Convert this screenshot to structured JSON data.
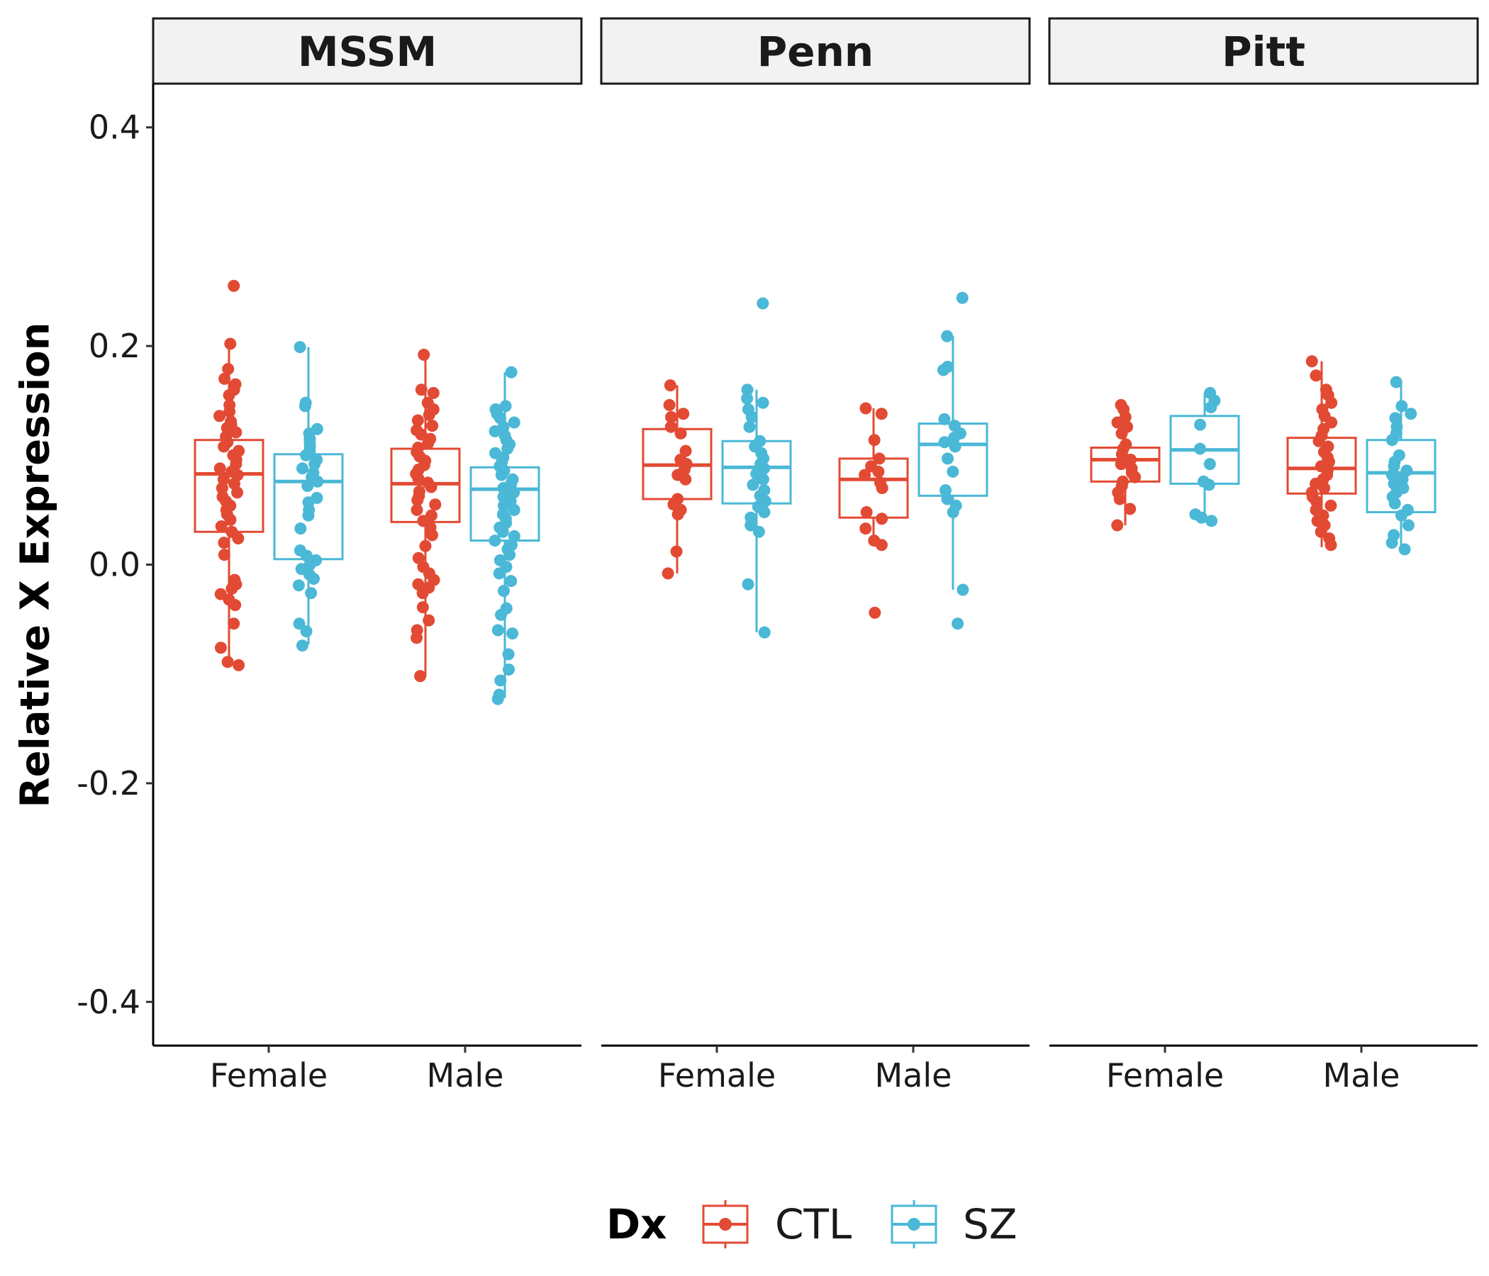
{
  "chart_data": {
    "type": "box",
    "facet_by": "Region",
    "facets": [
      "MSSM",
      "Penn",
      "Pitt"
    ],
    "categories": [
      "Female",
      "Male"
    ],
    "ylabel": "Relative X Expression",
    "xlabel": "",
    "ylim": [
      -0.44,
      0.44
    ],
    "yticks": [
      -0.4,
      -0.2,
      0.0,
      0.2,
      0.4
    ],
    "ytick_labels": [
      "-0.4",
      "-0.2",
      "0.0",
      "0.2",
      "0.4"
    ],
    "grid": false,
    "legend": {
      "title": "Dx",
      "position": "bottom",
      "entries": [
        "CTL",
        "SZ"
      ]
    },
    "colors": {
      "CTL": "#e24a33",
      "SZ": "#4ab8d6"
    },
    "boxes": [
      {
        "facet": "MSSM",
        "sex": "Female",
        "dx": "CTL",
        "q1": 0.03,
        "median": 0.083,
        "q3": 0.114,
        "whisker_low": -0.093,
        "whisker_high": 0.201,
        "points": [
          0.255,
          0.202,
          0.179,
          0.17,
          0.165,
          0.16,
          0.155,
          0.146,
          0.14,
          0.136,
          0.131,
          0.128,
          0.125,
          0.121,
          0.117,
          0.112,
          0.108,
          0.104,
          0.1,
          0.096,
          0.092,
          0.088,
          0.085,
          0.082,
          0.078,
          0.074,
          0.07,
          0.066,
          0.062,
          0.058,
          0.054,
          0.05,
          0.046,
          0.041,
          0.035,
          0.03,
          0.024,
          0.02,
          0.009,
          -0.014,
          -0.018,
          -0.022,
          -0.027,
          -0.032,
          -0.037,
          -0.054,
          -0.076,
          -0.089,
          -0.092
        ]
      },
      {
        "facet": "MSSM",
        "sex": "Female",
        "dx": "SZ",
        "q1": 0.005,
        "median": 0.076,
        "q3": 0.101,
        "whisker_low": -0.073,
        "whisker_high": 0.199,
        "points": [
          0.199,
          0.148,
          0.145,
          0.124,
          0.12,
          0.115,
          0.112,
          0.108,
          0.104,
          0.1,
          0.096,
          0.092,
          0.088,
          0.084,
          0.08,
          0.076,
          0.072,
          0.061,
          0.057,
          0.05,
          0.045,
          0.033,
          0.013,
          0.008,
          0.004,
          0.0,
          -0.004,
          -0.009,
          -0.013,
          -0.019,
          -0.026,
          -0.054,
          -0.061,
          -0.074
        ]
      },
      {
        "facet": "MSSM",
        "sex": "Male",
        "dx": "CTL",
        "q1": 0.039,
        "median": 0.074,
        "q3": 0.106,
        "whisker_low": -0.102,
        "whisker_high": 0.192,
        "points": [
          0.192,
          0.16,
          0.157,
          0.148,
          0.142,
          0.137,
          0.132,
          0.127,
          0.123,
          0.119,
          0.115,
          0.111,
          0.107,
          0.103,
          0.099,
          0.095,
          0.091,
          0.087,
          0.083,
          0.079,
          0.075,
          0.071,
          0.067,
          0.063,
          0.059,
          0.055,
          0.05,
          0.045,
          0.04,
          0.034,
          0.027,
          0.017,
          0.006,
          -0.002,
          -0.008,
          -0.014,
          -0.018,
          -0.021,
          -0.026,
          -0.039,
          -0.051,
          -0.06,
          -0.067,
          -0.102
        ]
      },
      {
        "facet": "MSSM",
        "sex": "Male",
        "dx": "SZ",
        "q1": 0.022,
        "median": 0.069,
        "q3": 0.089,
        "whisker_low": -0.122,
        "whisker_high": 0.176,
        "points": [
          0.176,
          0.145,
          0.142,
          0.138,
          0.134,
          0.13,
          0.126,
          0.122,
          0.118,
          0.114,
          0.11,
          0.106,
          0.102,
          0.098,
          0.094,
          0.09,
          0.086,
          0.082,
          0.078,
          0.074,
          0.07,
          0.066,
          0.062,
          0.058,
          0.054,
          0.05,
          0.046,
          0.042,
          0.038,
          0.034,
          0.03,
          0.026,
          0.022,
          0.018,
          0.014,
          0.009,
          0.004,
          -0.002,
          -0.008,
          -0.015,
          -0.024,
          -0.04,
          -0.046,
          -0.06,
          -0.063,
          -0.082,
          -0.096,
          -0.106,
          -0.119,
          -0.123
        ]
      },
      {
        "facet": "Penn",
        "sex": "Female",
        "dx": "CTL",
        "q1": 0.06,
        "median": 0.091,
        "q3": 0.124,
        "whisker_low": -0.008,
        "whisker_high": 0.164,
        "points": [
          0.164,
          0.146,
          0.138,
          0.135,
          0.126,
          0.12,
          0.104,
          0.096,
          0.092,
          0.087,
          0.082,
          0.078,
          0.06,
          0.055,
          0.05,
          0.046,
          0.012,
          -0.008
        ]
      },
      {
        "facet": "Penn",
        "sex": "Female",
        "dx": "SZ",
        "q1": 0.056,
        "median": 0.089,
        "q3": 0.113,
        "whisker_low": -0.062,
        "whisker_high": 0.16,
        "points": [
          0.239,
          0.16,
          0.152,
          0.148,
          0.142,
          0.135,
          0.126,
          0.113,
          0.108,
          0.102,
          0.097,
          0.092,
          0.088,
          0.083,
          0.078,
          0.073,
          0.068,
          0.063,
          0.058,
          0.053,
          0.048,
          0.043,
          0.036,
          0.03,
          -0.018,
          -0.062
        ]
      },
      {
        "facet": "Penn",
        "sex": "Male",
        "dx": "CTL",
        "q1": 0.043,
        "median": 0.078,
        "q3": 0.097,
        "whisker_low": 0.017,
        "whisker_high": 0.143,
        "points": [
          0.143,
          0.138,
          0.114,
          0.097,
          0.09,
          0.085,
          0.082,
          0.075,
          0.07,
          0.048,
          0.042,
          0.033,
          0.022,
          0.018,
          -0.044
        ]
      },
      {
        "facet": "Penn",
        "sex": "Male",
        "dx": "SZ",
        "q1": 0.063,
        "median": 0.11,
        "q3": 0.129,
        "whisker_low": -0.023,
        "whisker_high": 0.209,
        "points": [
          0.244,
          0.209,
          0.181,
          0.178,
          0.133,
          0.127,
          0.12,
          0.116,
          0.112,
          0.108,
          0.097,
          0.085,
          0.068,
          0.06,
          0.054,
          0.048,
          -0.023,
          -0.054
        ]
      },
      {
        "facet": "Pitt",
        "sex": "Female",
        "dx": "CTL",
        "q1": 0.076,
        "median": 0.096,
        "q3": 0.107,
        "whisker_low": 0.036,
        "whisker_high": 0.146,
        "points": [
          0.146,
          0.142,
          0.135,
          0.13,
          0.126,
          0.12,
          0.11,
          0.106,
          0.101,
          0.096,
          0.092,
          0.088,
          0.084,
          0.08,
          0.076,
          0.072,
          0.066,
          0.06,
          0.051,
          0.036
        ]
      },
      {
        "facet": "Pitt",
        "sex": "Female",
        "dx": "SZ",
        "q1": 0.074,
        "median": 0.105,
        "q3": 0.136,
        "whisker_low": 0.04,
        "whisker_high": 0.157,
        "points": [
          0.157,
          0.15,
          0.144,
          0.128,
          0.106,
          0.092,
          0.076,
          0.073,
          0.046,
          0.043,
          0.04
        ]
      },
      {
        "facet": "Pitt",
        "sex": "Male",
        "dx": "CTL",
        "q1": 0.065,
        "median": 0.088,
        "q3": 0.116,
        "whisker_low": 0.016,
        "whisker_high": 0.186,
        "points": [
          0.186,
          0.173,
          0.16,
          0.155,
          0.148,
          0.142,
          0.136,
          0.13,
          0.124,
          0.118,
          0.113,
          0.108,
          0.103,
          0.098,
          0.094,
          0.09,
          0.086,
          0.082,
          0.078,
          0.074,
          0.07,
          0.066,
          0.062,
          0.058,
          0.054,
          0.05,
          0.045,
          0.04,
          0.036,
          0.03,
          0.024,
          0.018
        ]
      },
      {
        "facet": "Pitt",
        "sex": "Male",
        "dx": "SZ",
        "q1": 0.048,
        "median": 0.084,
        "q3": 0.114,
        "whisker_low": 0.014,
        "whisker_high": 0.167,
        "points": [
          0.167,
          0.145,
          0.138,
          0.134,
          0.126,
          0.12,
          0.114,
          0.1,
          0.094,
          0.09,
          0.086,
          0.082,
          0.078,
          0.074,
          0.07,
          0.066,
          0.062,
          0.056,
          0.05,
          0.045,
          0.036,
          0.027,
          0.02,
          0.014
        ]
      }
    ]
  }
}
